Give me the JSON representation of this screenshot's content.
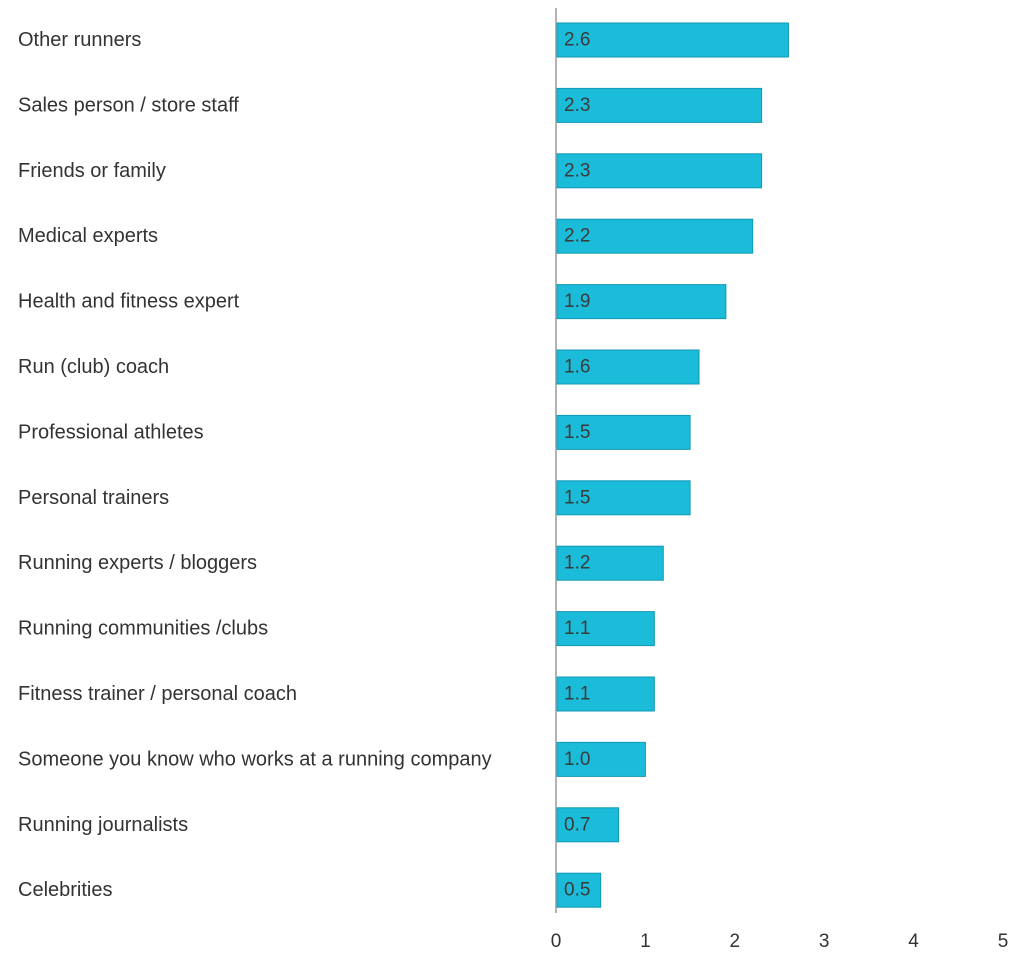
{
  "chart_data": {
    "type": "bar",
    "orientation": "horizontal",
    "categories": [
      "Other runners",
      "Sales person / store staff",
      "Friends or family",
      "Medical experts",
      "Health and fitness expert",
      "Run (club) coach",
      "Professional athletes",
      "Personal trainers",
      "Running experts / bloggers",
      "Running communities /clubs",
      "Fitness trainer / personal coach",
      "Someone you know who works at a running company",
      "Running journalists",
      "Celebrities"
    ],
    "values": [
      2.6,
      2.3,
      2.3,
      2.2,
      1.9,
      1.6,
      1.5,
      1.5,
      1.2,
      1.1,
      1.1,
      1.0,
      0.7,
      0.5
    ],
    "value_labels": [
      "2.6",
      "2.3",
      "2.3",
      "2.2",
      "1.9",
      "1.6",
      "1.5",
      "1.5",
      "1.2",
      "1.1",
      "1.1",
      "1.0",
      "0.7",
      "0.5"
    ],
    "xlim": [
      0,
      5
    ],
    "xticks": [
      "0",
      "1",
      "2",
      "3",
      "4",
      "5"
    ],
    "title": "",
    "xlabel": "",
    "ylabel": "",
    "grid": false,
    "legend": "none",
    "bar_color": "#1bbcd9",
    "bar_edge_color": "#1298b3",
    "axis_color": "#b3b3b3",
    "text_color": "#333333"
  }
}
